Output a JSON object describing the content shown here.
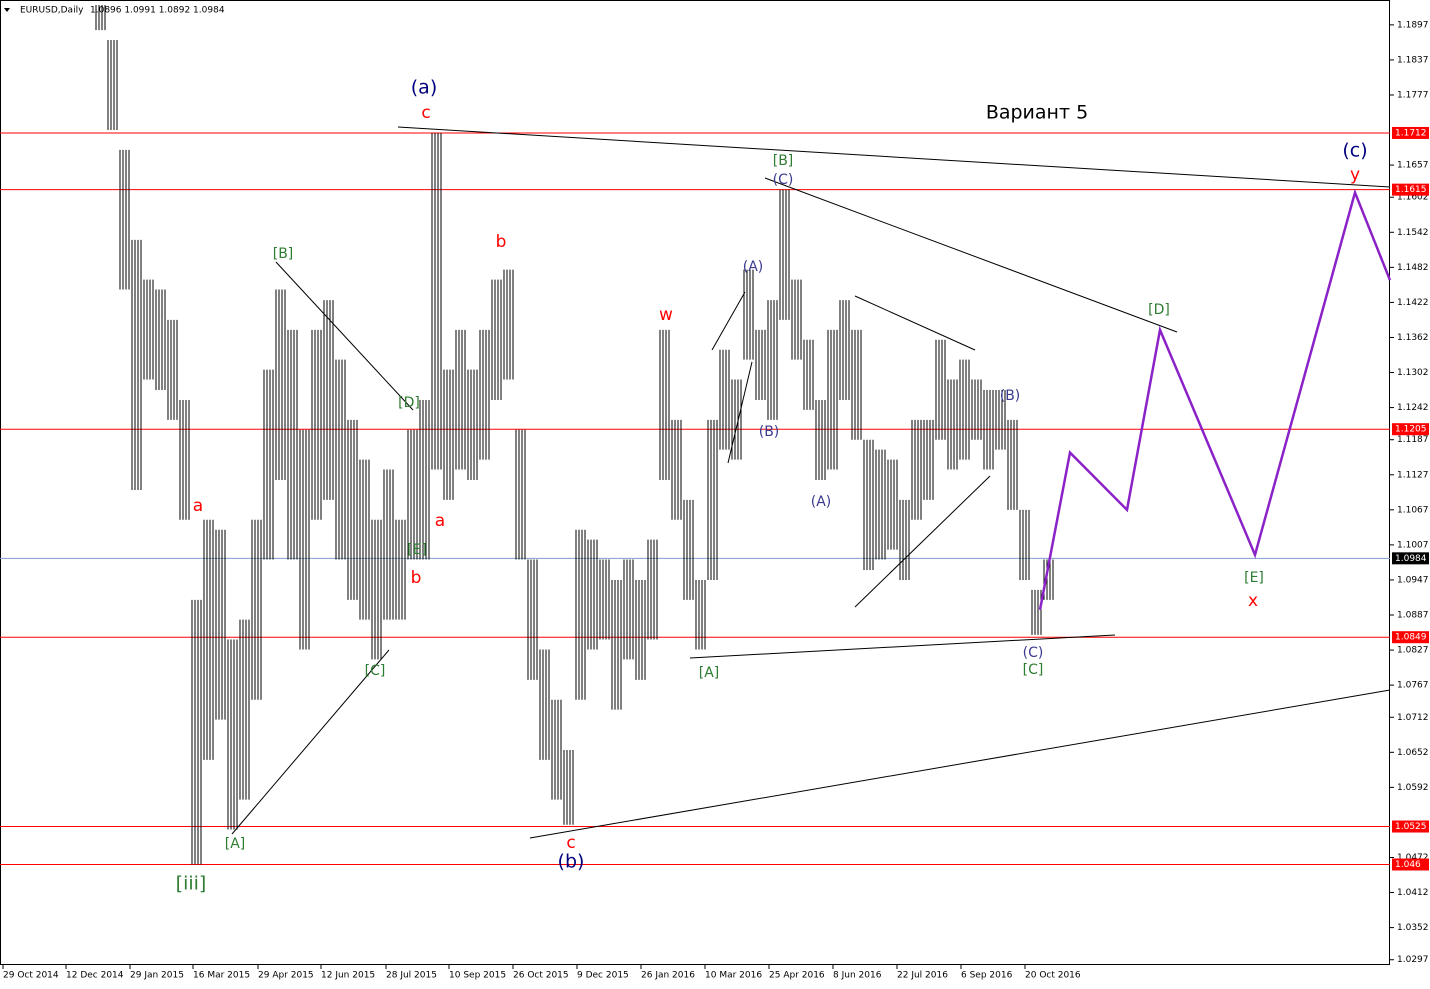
{
  "chart_data": {
    "type": "ohlc",
    "title": "EURUSD,Daily",
    "subtitle": "1.0896 1.0991 1.0892 1.0984",
    "color": "#000000",
    "highs": [
      1.1931,
      1.1871,
      1.1683,
      1.1529,
      1.1461,
      1.1444,
      1.1392,
      1.1255,
      1.0913,
      1.105,
      1.1033,
      1.0845,
      1.0879,
      1.105,
      1.1307,
      1.1444,
      1.1375,
      1.1204,
      1.1375,
      1.1426,
      1.1324,
      1.1221,
      1.1153,
      1.105,
      1.1136,
      1.105,
      1.1204,
      1.1255,
      1.1712,
      1.1307,
      1.1375,
      1.1307,
      1.1375,
      1.1461,
      1.1478,
      1.1204,
      1.0982,
      1.0828,
      1.0742,
      1.0656,
      1.1033,
      1.1016,
      1.0982,
      1.0947,
      1.0982,
      1.0947,
      1.1016,
      1.1375,
      1.1221,
      1.1084,
      1.0947,
      1.1221,
      1.1341,
      1.129,
      1.1478,
      1.1375,
      1.1426,
      1.1615,
      1.1461,
      1.1358,
      1.1255,
      1.1375,
      1.1426,
      1.1375,
      1.1187,
      1.117,
      1.1153,
      1.1084,
      1.1221,
      1.1221,
      1.1358,
      1.129,
      1.1324,
      1.129,
      1.1272,
      1.1272,
      1.1221,
      1.1067,
      1.093,
      1.0982
    ],
    "lows": [
      1.1888,
      1.1717,
      1.1444,
      1.1101,
      1.129,
      1.1272,
      1.1221,
      1.105,
      1.046,
      1.0639,
      1.0708,
      1.052,
      1.0571,
      1.0742,
      1.0982,
      1.1118,
      1.0982,
      1.0828,
      1.105,
      1.1084,
      1.0982,
      1.0913,
      1.0879,
      1.0811,
      1.0879,
      1.0879,
      1.0982,
      1.0982,
      1.1136,
      1.1084,
      1.1136,
      1.1118,
      1.1153,
      1.1255,
      1.129,
      1.0982,
      1.0776,
      1.0639,
      1.0571,
      1.0528,
      1.0742,
      1.0828,
      1.0845,
      1.0725,
      1.0811,
      1.0776,
      1.0845,
      1.1118,
      1.105,
      1.0913,
      1.0828,
      1.0947,
      1.117,
      1.1153,
      1.1324,
      1.1255,
      1.1221,
      1.1392,
      1.1324,
      1.1238,
      1.1118,
      1.1136,
      1.1255,
      1.1187,
      1.0964,
      1.0982,
      1.0999,
      1.0947,
      1.105,
      1.1084,
      1.1187,
      1.1136,
      1.1153,
      1.1187,
      1.1136,
      1.117,
      1.1067,
      1.0947,
      1.0853,
      1.0913
    ],
    "ylim": [
      1.0288,
      1.1931
    ],
    "yticks": [
      1.1897,
      1.1837,
      1.1777,
      1.1657,
      1.1602,
      1.1542,
      1.1482,
      1.1422,
      1.1362,
      1.1302,
      1.1242,
      1.1187,
      1.1127,
      1.1067,
      1.1007,
      1.0947,
      1.0887,
      1.0827,
      1.0767,
      1.0712,
      1.0652,
      1.0592,
      1.0472,
      1.0412,
      1.0352,
      1.0297
    ],
    "dates": [
      "29 Oct 2014",
      "12 Dec 2014",
      "29 Jan 2015",
      "16 Mar 2015",
      "29 Apr 2015",
      "12 Jun 2015",
      "28 Jul 2015",
      "10 Sep 2015",
      "26 Oct 2015",
      "9 Dec 2015",
      "26 Jan 2016",
      "10 Mar 2016",
      "25 Apr 2016",
      "8 Jun 2016",
      "22 Jul 2016",
      "6 Sep 2016",
      "20 Oct 2016"
    ],
    "levels": [
      1.1712,
      1.1615,
      1.1205,
      1.0849,
      1.0525,
      1.046
    ],
    "level_color": "#ff0000",
    "current_price": 1.0984,
    "current_color": "#7f9fcf",
    "projection": {
      "color": "#8b22c8",
      "values": [
        1.0896,
        1.1165,
        1.1067,
        1.1375,
        1.099,
        1.161,
        1.146
      ]
    },
    "annotations": [
      {
        "text": "(a)",
        "color": "#00007f"
      },
      {
        "text": "c",
        "color": "#ff0000"
      },
      {
        "text": "Вариант 5",
        "color": "#000000"
      },
      {
        "text": "(c)",
        "color": "#00007f"
      },
      {
        "text": "y",
        "color": "#ff0000"
      },
      {
        "text": "[B]",
        "color": "#2e7d32"
      },
      {
        "text": "(C)",
        "color": "#3b3b8f"
      },
      {
        "text": "[B]",
        "color": "#2e7d32"
      },
      {
        "text": "b",
        "color": "#ff0000"
      },
      {
        "text": "w",
        "color": "#ff0000"
      },
      {
        "text": "(A)",
        "color": "#3b3b8f"
      },
      {
        "text": "[D]",
        "color": "#2e7d32"
      },
      {
        "text": "[D]",
        "color": "#2e7d32"
      },
      {
        "text": "(B)",
        "color": "#3b3b8f"
      },
      {
        "text": "(B)",
        "color": "#3b3b8f"
      },
      {
        "text": "(A)",
        "color": "#3b3b8f"
      },
      {
        "text": "a",
        "color": "#ff0000"
      },
      {
        "text": "a",
        "color": "#ff0000"
      },
      {
        "text": "[E]",
        "color": "#2e7d32"
      },
      {
        "text": "b",
        "color": "#ff0000"
      },
      {
        "text": "[E]",
        "color": "#2e7d32"
      },
      {
        "text": "x",
        "color": "#ff0000"
      },
      {
        "text": "(C)",
        "color": "#3b3b8f"
      },
      {
        "text": "[C]",
        "color": "#2e7d32"
      },
      {
        "text": "[C]",
        "color": "#2e7d32"
      },
      {
        "text": "[A]",
        "color": "#2e7d32"
      },
      {
        "text": "[A]",
        "color": "#2e7d32"
      },
      {
        "text": "c",
        "color": "#ff0000"
      },
      {
        "text": "(b)",
        "color": "#00007f"
      },
      {
        "text": "[iii]",
        "color": "#2e7d32"
      }
    ]
  }
}
